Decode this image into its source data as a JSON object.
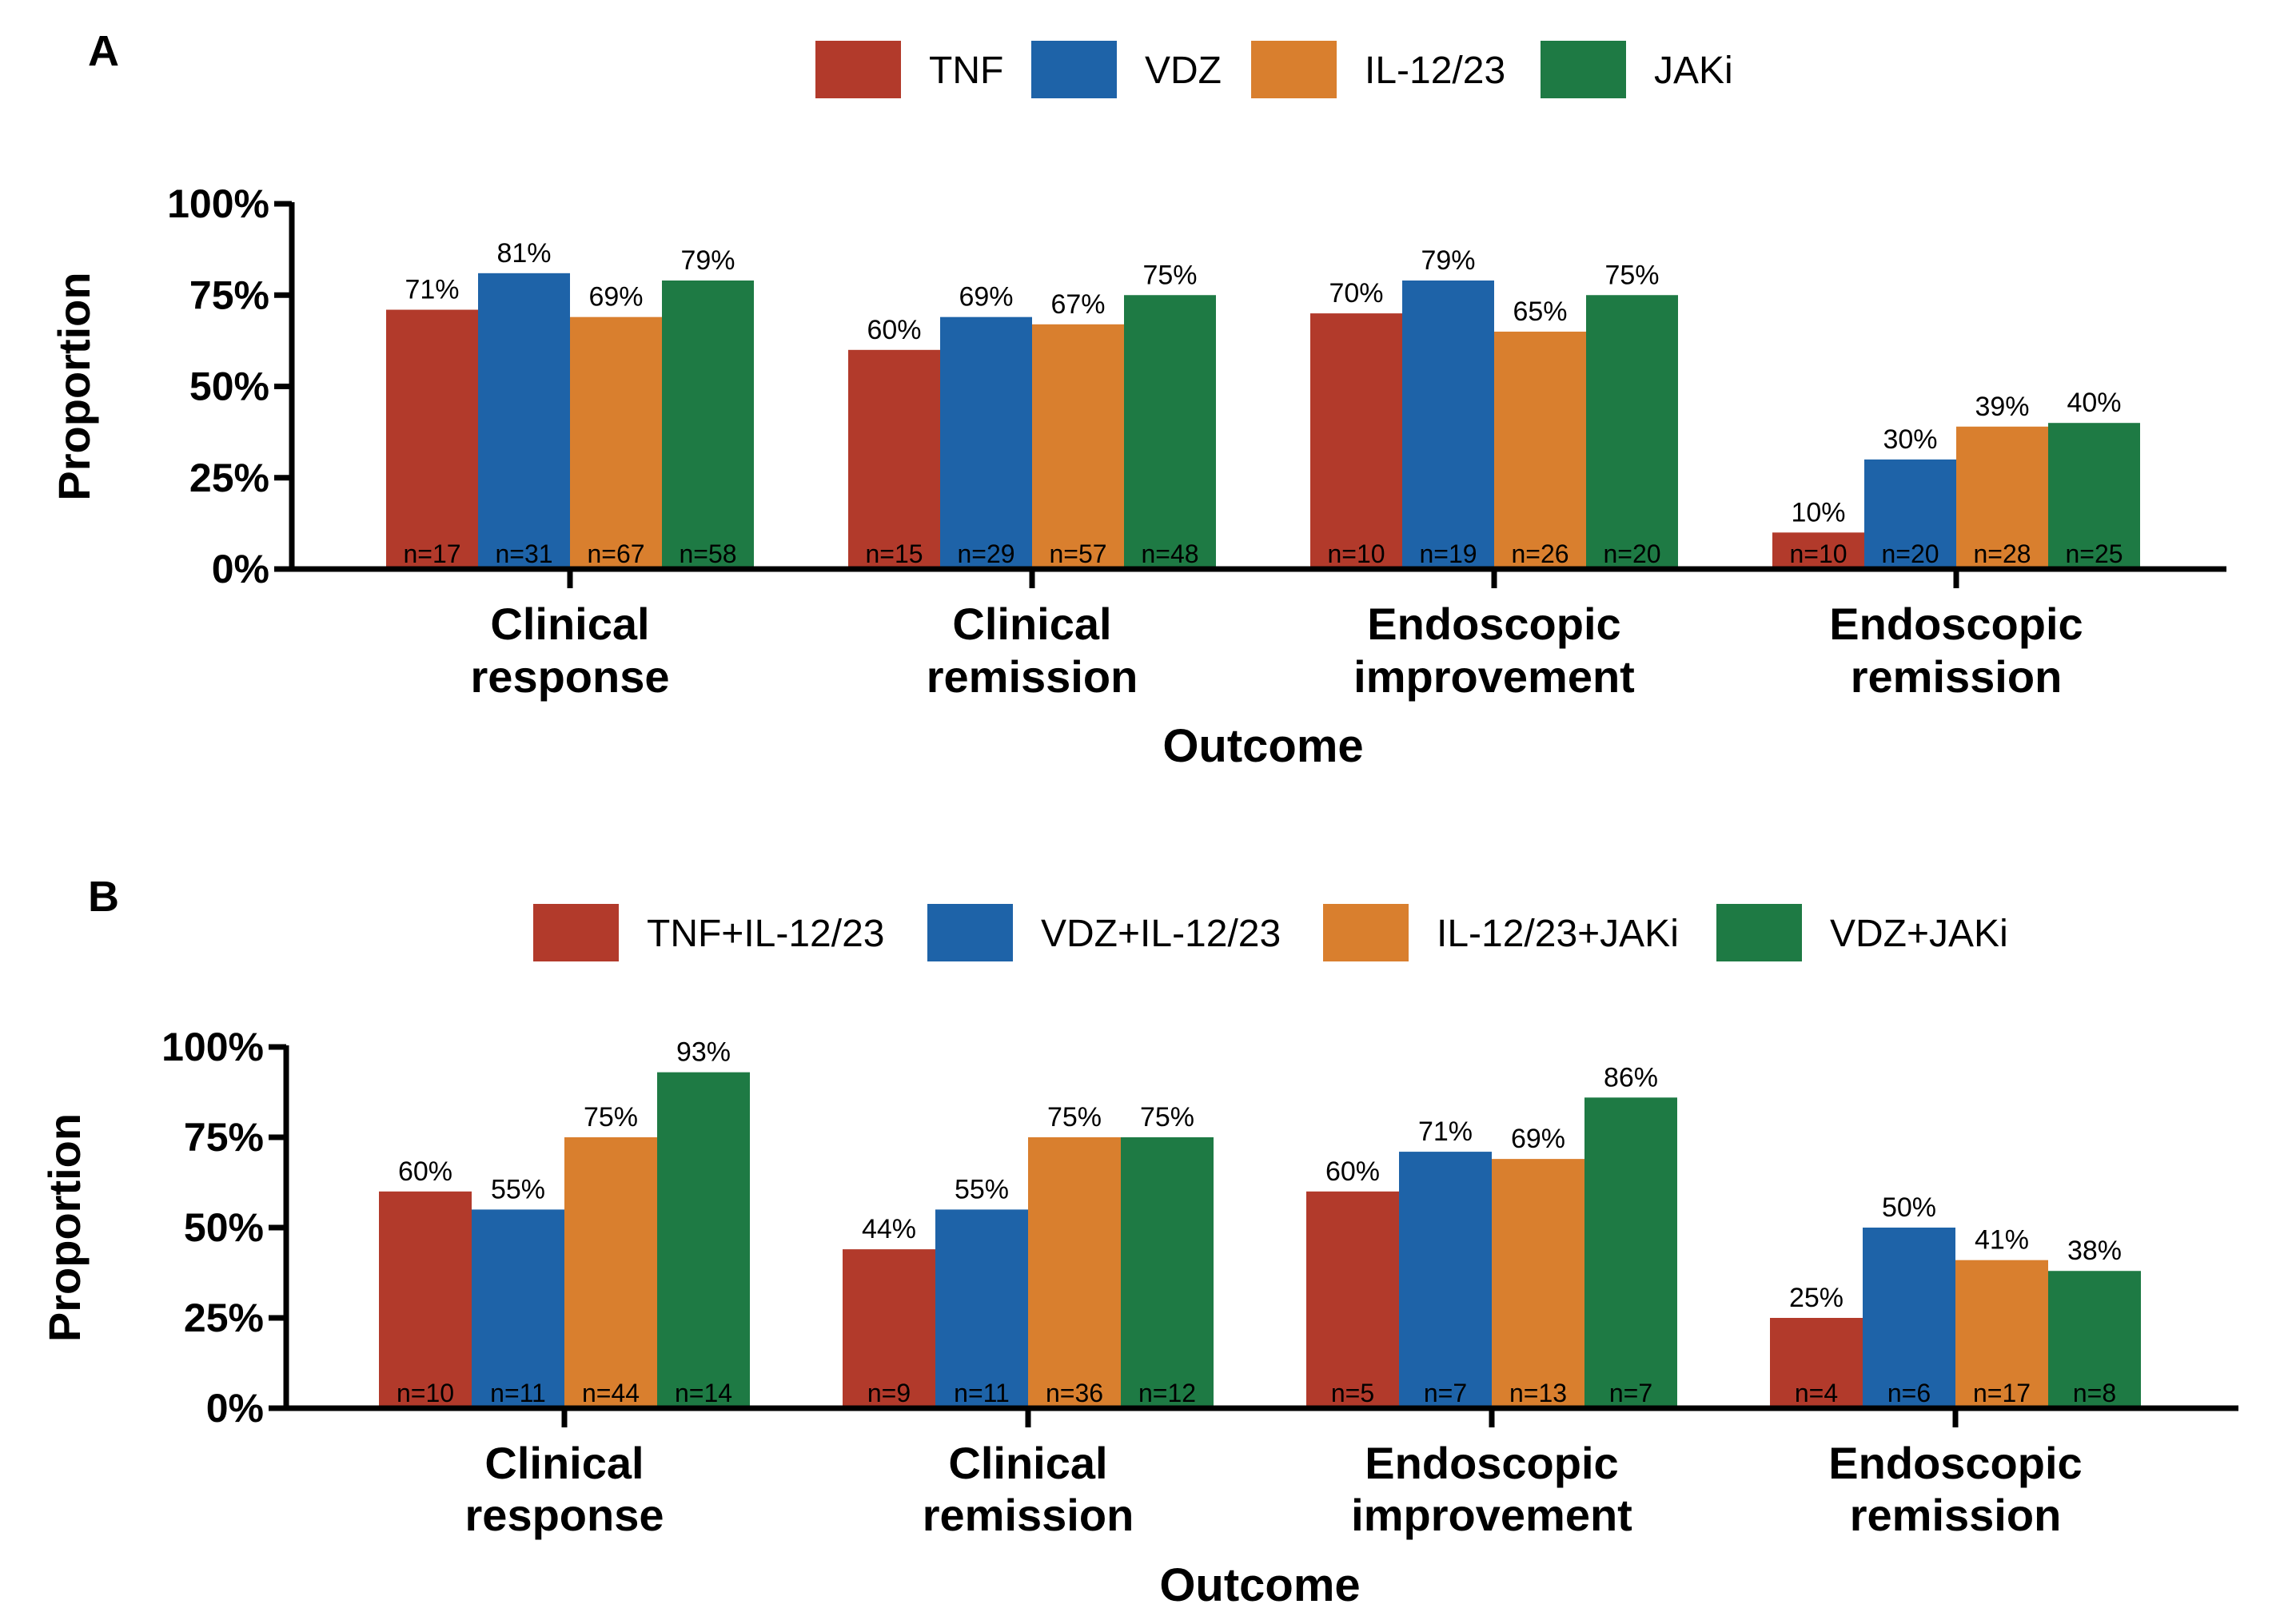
{
  "colors": {
    "red": "#B23A2B",
    "blue": "#1E63A8",
    "orange": "#D97F2E",
    "green": "#1E7A44",
    "axis": "#000000"
  },
  "chart_data": [
    {
      "panel": "A",
      "type": "bar",
      "categories": [
        [
          "Clinical",
          "response"
        ],
        [
          "Clinical",
          "remission"
        ],
        [
          "Endoscopic",
          "improvement"
        ],
        [
          "Endoscopic",
          "remission"
        ]
      ],
      "xlabel": "Outcome",
      "ylabel": "Proportion",
      "ylim": [
        0,
        100
      ],
      "yticks": [
        "0%",
        "25%",
        "50%",
        "75%",
        "100%"
      ],
      "legend_position": "top",
      "series": [
        {
          "name": "TNF",
          "color": "#B23A2B",
          "values": [
            71,
            60,
            70,
            10
          ],
          "labels": [
            "71%",
            "60%",
            "70%",
            "10%"
          ],
          "n": [
            "n=17",
            "n=15",
            "n=10",
            "n=10"
          ]
        },
        {
          "name": "VDZ",
          "color": "#1E63A8",
          "values": [
            81,
            69,
            79,
            30
          ],
          "labels": [
            "81%",
            "69%",
            "79%",
            "30%"
          ],
          "n": [
            "n=31",
            "n=29",
            "n=19",
            "n=20"
          ]
        },
        {
          "name": "IL-12/23",
          "color": "#D97F2E",
          "values": [
            69,
            67,
            65,
            39
          ],
          "labels": [
            "69%",
            "67%",
            "65%",
            "39%"
          ],
          "n": [
            "n=67",
            "n=57",
            "n=26",
            "n=28"
          ]
        },
        {
          "name": "JAKi",
          "color": "#1E7A44",
          "values": [
            79,
            75,
            75,
            40
          ],
          "labels": [
            "79%",
            "75%",
            "75%",
            "40%"
          ],
          "n": [
            "n=58",
            "n=48",
            "n=20",
            "n=25"
          ]
        }
      ]
    },
    {
      "panel": "B",
      "type": "bar",
      "categories": [
        [
          "Clinical",
          "response"
        ],
        [
          "Clinical",
          "remission"
        ],
        [
          "Endoscopic",
          "improvement"
        ],
        [
          "Endoscopic",
          "remission"
        ]
      ],
      "xlabel": "Outcome",
      "ylabel": "Proportion",
      "ylim": [
        0,
        100
      ],
      "yticks": [
        "0%",
        "25%",
        "50%",
        "75%",
        "100%"
      ],
      "legend_position": "top",
      "series": [
        {
          "name": "TNF+IL-12/23",
          "color": "#B23A2B",
          "values": [
            60,
            44,
            60,
            25
          ],
          "labels": [
            "60%",
            "44%",
            "60%",
            "25%"
          ],
          "n": [
            "n=10",
            "n=9",
            "n=5",
            "n=4"
          ]
        },
        {
          "name": "VDZ+IL-12/23",
          "color": "#1E63A8",
          "values": [
            55,
            55,
            71,
            50
          ],
          "labels": [
            "55%",
            "55%",
            "71%",
            "50%"
          ],
          "n": [
            "n=11",
            "n=11",
            "n=7",
            "n=6"
          ]
        },
        {
          "name": "IL-12/23+JAKi",
          "color": "#D97F2E",
          "values": [
            75,
            75,
            69,
            41
          ],
          "labels": [
            "75%",
            "75%",
            "69%",
            "41%"
          ],
          "n": [
            "n=44",
            "n=36",
            "n=13",
            "n=17"
          ]
        },
        {
          "name": "VDZ+JAKi",
          "color": "#1E7A44",
          "values": [
            93,
            75,
            86,
            38
          ],
          "labels": [
            "93%",
            "75%",
            "86%",
            "38%"
          ],
          "n": [
            "n=14",
            "n=12",
            "n=7",
            "n=8"
          ]
        }
      ]
    }
  ]
}
